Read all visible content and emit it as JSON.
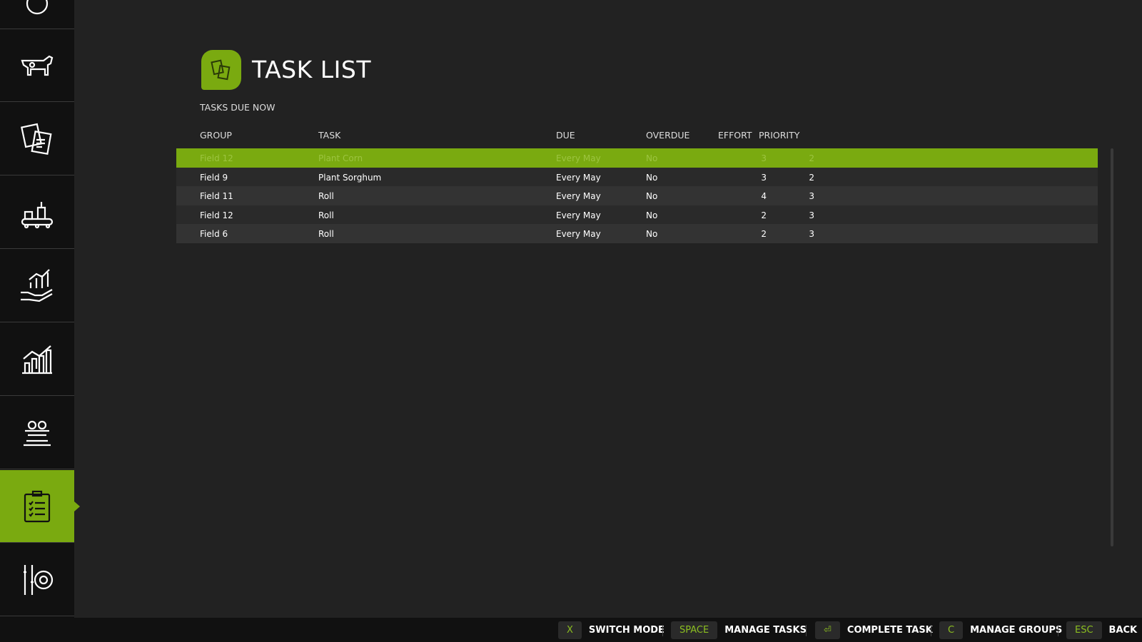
{
  "header": {
    "title": "TASK LIST",
    "subtitle": "TASKS DUE NOW",
    "icon": "documents-icon"
  },
  "sidebar": {
    "items": [
      {
        "icon": "circle-icon"
      },
      {
        "icon": "cow-icon"
      },
      {
        "icon": "documents-icon"
      },
      {
        "icon": "production-icon"
      },
      {
        "icon": "finance-hand-chart-icon"
      },
      {
        "icon": "statistics-chart-icon"
      },
      {
        "icon": "adjust-spray-levels-icon"
      },
      {
        "icon": "clipboard-checklist-icon",
        "active": true
      },
      {
        "icon": "settings-sliders-icon"
      }
    ]
  },
  "table": {
    "columns": [
      "GROUP",
      "TASK",
      "DUE",
      "OVERDUE",
      "EFFORT",
      "PRIORITY"
    ],
    "rows": [
      {
        "group": "Field 12",
        "task": "Plant Corn",
        "due": "Every May",
        "overdue": "No",
        "effort": "3",
        "priority": "2",
        "selected": true
      },
      {
        "group": "Field 9",
        "task": "Plant Sorghum",
        "due": "Every May",
        "overdue": "No",
        "effort": "3",
        "priority": "2"
      },
      {
        "group": "Field 11",
        "task": "Roll",
        "due": "Every May",
        "overdue": "No",
        "effort": "4",
        "priority": "3"
      },
      {
        "group": "Field 12",
        "task": "Roll",
        "due": "Every May",
        "overdue": "No",
        "effort": "2",
        "priority": "3"
      },
      {
        "group": "Field 6",
        "task": "Roll",
        "due": "Every May",
        "overdue": "No",
        "effort": "2",
        "priority": "3"
      }
    ]
  },
  "footer": {
    "hints": [
      {
        "key": "X",
        "label": "SWITCH MODE"
      },
      {
        "key": "SPACE",
        "label": "MANAGE TASKS"
      },
      {
        "key": "⏎",
        "label": "COMPLETE TASK"
      },
      {
        "key": "C",
        "label": "MANAGE GROUPS"
      },
      {
        "key": "ESC",
        "label": "BACK"
      }
    ]
  },
  "colors": {
    "accent": "#7aaa10",
    "background": "#222222",
    "sidebar": "#111111"
  }
}
